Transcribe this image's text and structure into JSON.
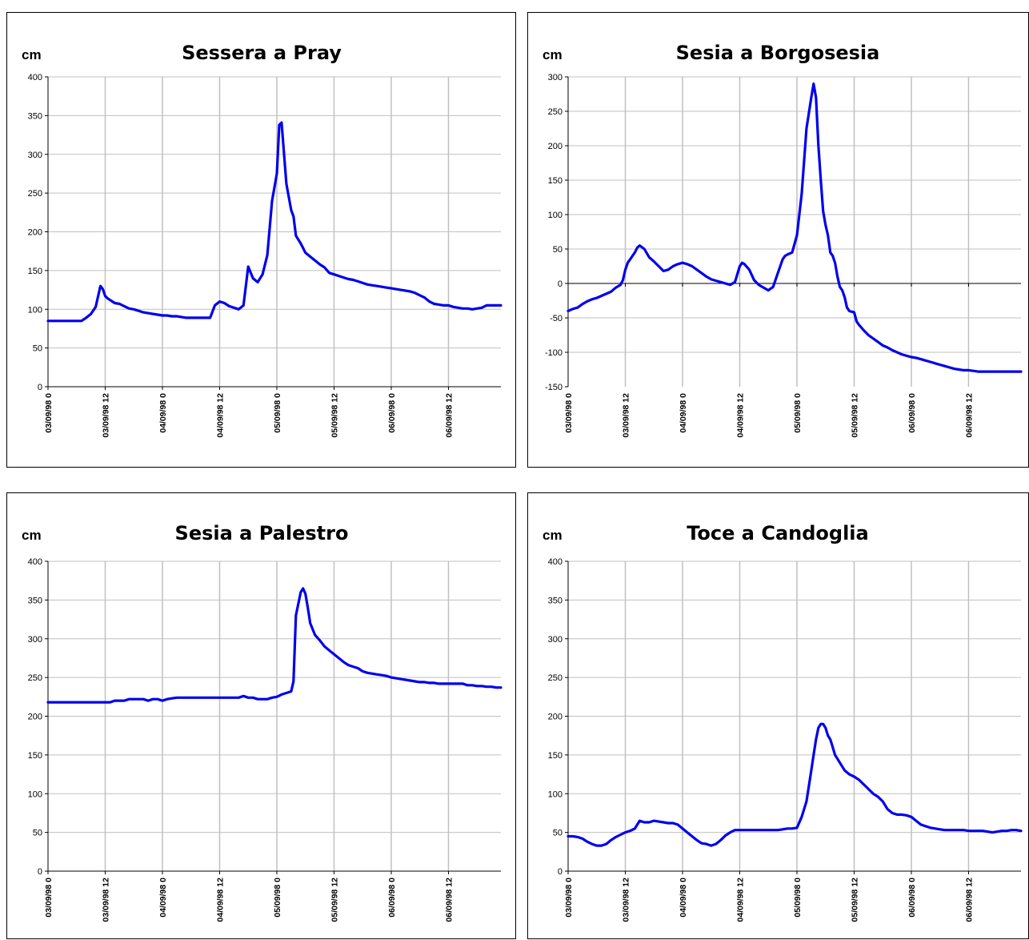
{
  "colors": {
    "series": "#0000ee",
    "grid": "#c0c0c0",
    "axis": "#000000"
  },
  "chart_data": [
    {
      "type": "line",
      "title": "Sessera a Pray",
      "ylabel": "cm",
      "ylim": [
        0,
        400
      ],
      "yticks": [
        0,
        50,
        100,
        150,
        200,
        250,
        300,
        350,
        400
      ],
      "xticks": [
        "03/09/98 0",
        "03/09/98 12",
        "04/09/98 0",
        "04/09/98 12",
        "05/09/98 0",
        "05/09/98 12",
        "06/09/98 0",
        "06/09/98 12"
      ],
      "xlim_hours": [
        0,
        95
      ],
      "grid": true,
      "x": [
        0,
        7,
        8,
        9,
        10,
        11,
        11.5,
        12,
        12.5,
        13,
        14,
        15,
        16,
        17,
        18,
        19,
        20,
        21,
        22,
        23,
        24,
        25,
        26,
        27,
        28,
        29,
        30,
        31,
        32,
        33,
        34,
        35,
        36,
        37,
        38,
        39,
        40,
        41,
        42,
        43,
        44,
        45,
        46,
        47,
        48,
        48.5,
        49,
        50,
        50.5,
        51,
        51.5,
        52,
        52.5,
        53,
        54,
        55,
        56,
        57,
        58,
        59,
        60,
        61,
        62,
        63,
        64,
        65,
        66,
        67,
        68,
        69,
        70,
        71,
        72,
        73,
        74,
        75,
        76,
        77,
        78,
        79,
        80,
        81,
        82,
        83,
        84,
        85,
        86,
        87,
        88,
        89,
        90,
        91,
        92,
        93,
        94,
        95
      ],
      "y": [
        85,
        85,
        89,
        94,
        103,
        130,
        126,
        117,
        114,
        112,
        108,
        107,
        104,
        101,
        100,
        98,
        96,
        95,
        94,
        93,
        92,
        92,
        91,
        91,
        90,
        89,
        89,
        89,
        89,
        89,
        89,
        105,
        110,
        108,
        104,
        102,
        100,
        105,
        155,
        140,
        135,
        145,
        170,
        240,
        275,
        338,
        341,
        262,
        245,
        228,
        220,
        195,
        190,
        185,
        173,
        168,
        163,
        158,
        154,
        147,
        145,
        143,
        141,
        139,
        138,
        136,
        134,
        132,
        131,
        130,
        129,
        128,
        127,
        126,
        125,
        124,
        123,
        121,
        118,
        115,
        110,
        107,
        106,
        105,
        105,
        103,
        102,
        101,
        101,
        100,
        101,
        102,
        105,
        105,
        105,
        105
      ]
    },
    {
      "type": "line",
      "title": "Sesia a Borgosesia",
      "ylabel": "cm",
      "ylim": [
        -150,
        300
      ],
      "yticks": [
        -150,
        -100,
        -50,
        0,
        50,
        100,
        150,
        200,
        250,
        300
      ],
      "xticks": [
        "03/09/98 0",
        "03/09/98 12",
        "04/09/98 0",
        "04/09/98 12",
        "05/09/98 0",
        "05/09/98 12",
        "06/09/98 0",
        "06/09/98 12"
      ],
      "xlim_hours": [
        0,
        95
      ],
      "grid": true,
      "x": [
        0,
        1,
        2,
        3,
        4,
        5,
        6,
        7,
        8,
        9,
        10,
        11,
        11.5,
        12,
        12.5,
        13,
        13.5,
        14,
        14.5,
        15,
        16,
        17,
        18,
        19,
        20,
        21,
        22,
        23,
        24,
        25,
        26,
        27,
        28,
        29,
        30,
        31,
        32,
        33,
        34,
        35,
        36,
        36.5,
        37,
        38,
        39,
        40,
        41,
        42,
        43,
        44,
        45,
        45.5,
        46,
        47,
        48,
        49,
        50,
        51,
        51.5,
        52,
        52.5,
        53,
        53.5,
        54,
        54.5,
        55,
        55.5,
        56,
        56.5,
        57,
        57.5,
        58,
        58.5,
        59,
        60,
        60.5,
        61,
        62,
        63,
        64,
        65,
        66,
        67,
        68,
        69,
        70,
        71,
        72,
        73,
        74,
        75,
        76,
        77,
        78,
        79,
        80,
        81,
        82,
        83,
        84,
        85,
        86,
        87,
        88,
        89,
        90,
        91,
        92,
        93,
        94,
        95
      ],
      "y": [
        -40,
        -37,
        -35,
        -30,
        -26,
        -23,
        -21,
        -18,
        -15,
        -12,
        -6,
        -2,
        5,
        20,
        30,
        35,
        40,
        45,
        52,
        55,
        50,
        38,
        32,
        25,
        18,
        20,
        25,
        28,
        30,
        28,
        25,
        20,
        15,
        10,
        6,
        4,
        2,
        0,
        -2,
        2,
        25,
        30,
        28,
        20,
        5,
        -2,
        -6,
        -10,
        -5,
        15,
        35,
        40,
        42,
        45,
        70,
        130,
        225,
        270,
        290,
        270,
        200,
        150,
        105,
        85,
        70,
        45,
        40,
        30,
        10,
        -5,
        -10,
        -20,
        -35,
        -40,
        -42,
        -55,
        -60,
        -68,
        -75,
        -80,
        -85,
        -90,
        -93,
        -97,
        -100,
        -103,
        -105,
        -107,
        -108,
        -110,
        -112,
        -114,
        -116,
        -118,
        -120,
        -122,
        -124,
        -125,
        -126,
        -126,
        -127,
        -128,
        -128,
        -128,
        -128,
        -128,
        -128,
        -128,
        -128,
        -128,
        -128
      ]
    },
    {
      "type": "line",
      "title": "Sesia a Palestro",
      "ylabel": "cm",
      "ylim": [
        0,
        400
      ],
      "yticks": [
        0,
        50,
        100,
        150,
        200,
        250,
        300,
        350,
        400
      ],
      "xticks": [
        "03/09/98 0",
        "03/09/98 12",
        "04/09/98 0",
        "04/09/98 12",
        "05/09/98 0",
        "05/09/98 12",
        "06/09/98 0",
        "06/09/98 12"
      ],
      "xlim_hours": [
        0,
        95
      ],
      "grid": true,
      "x": [
        0,
        4,
        8,
        12,
        13,
        14,
        15,
        16,
        17,
        18,
        19,
        20,
        21,
        22,
        23,
        24,
        25,
        26,
        27,
        28,
        29,
        30,
        31,
        32,
        33,
        34,
        35,
        36,
        37,
        38,
        39,
        40,
        41,
        42,
        43,
        44,
        45,
        46,
        47,
        48,
        49,
        50,
        51,
        51.5,
        52,
        52.5,
        53,
        53.5,
        54,
        54.5,
        55,
        56,
        57,
        58,
        59,
        60,
        61,
        62,
        63,
        64,
        65,
        66,
        67,
        68,
        69,
        70,
        71,
        72,
        73,
        74,
        75,
        76,
        77,
        78,
        79,
        80,
        81,
        82,
        83,
        84,
        85,
        86,
        87,
        88,
        89,
        90,
        91,
        92,
        93,
        94,
        95
      ],
      "y": [
        218,
        218,
        218,
        218,
        218,
        220,
        220,
        220,
        222,
        222,
        222,
        222,
        220,
        222,
        222,
        220,
        222,
        223,
        224,
        224,
        224,
        224,
        224,
        224,
        224,
        224,
        224,
        224,
        224,
        224,
        224,
        224,
        226,
        224,
        224,
        222,
        222,
        222,
        224,
        225,
        228,
        230,
        232,
        245,
        330,
        345,
        360,
        365,
        358,
        340,
        320,
        305,
        298,
        290,
        285,
        280,
        275,
        270,
        266,
        264,
        262,
        258,
        256,
        255,
        254,
        253,
        252,
        250,
        249,
        248,
        247,
        246,
        245,
        244,
        244,
        243,
        243,
        242,
        242,
        242,
        242,
        242,
        242,
        240,
        240,
        239,
        239,
        238,
        238,
        237,
        237
      ]
    },
    {
      "type": "line",
      "title": "Toce a Candoglia",
      "ylabel": "cm",
      "ylim": [
        0,
        400
      ],
      "yticks": [
        0,
        50,
        100,
        150,
        200,
        250,
        300,
        350,
        400
      ],
      "xticks": [
        "03/09/98 0",
        "03/09/98 12",
        "04/09/98 0",
        "04/09/98 12",
        "05/09/98 0",
        "05/09/98 12",
        "06/09/98 0",
        "06/09/98 12"
      ],
      "xlim_hours": [
        0,
        95
      ],
      "grid": true,
      "x": [
        0,
        1,
        2,
        3,
        4,
        5,
        6,
        7,
        8,
        9,
        10,
        11,
        12,
        13,
        14,
        15,
        16,
        17,
        18,
        19,
        20,
        21,
        22,
        23,
        24,
        25,
        26,
        27,
        28,
        29,
        30,
        31,
        32,
        33,
        34,
        35,
        36,
        37,
        38,
        39,
        40,
        41,
        42,
        43,
        44,
        45,
        46,
        47,
        48,
        49,
        50,
        50.5,
        51,
        51.5,
        52,
        52.5,
        53,
        53.5,
        54,
        54.5,
        55,
        55.5,
        56,
        56.5,
        57,
        58,
        59,
        60,
        61,
        62,
        63,
        64,
        65,
        66,
        67,
        68,
        69,
        70,
        71,
        72,
        73,
        74,
        75,
        76,
        77,
        78,
        79,
        80,
        81,
        82,
        83,
        84,
        85,
        86,
        87,
        88,
        89,
        90,
        91,
        92,
        93,
        94,
        95
      ],
      "y": [
        45,
        45,
        44,
        42,
        38,
        35,
        33,
        33,
        35,
        40,
        44,
        47,
        50,
        52,
        55,
        65,
        63,
        63,
        65,
        64,
        63,
        62,
        62,
        60,
        55,
        50,
        45,
        40,
        36,
        35,
        33,
        35,
        40,
        46,
        50,
        53,
        53,
        53,
        53,
        53,
        53,
        53,
        53,
        53,
        53,
        54,
        55,
        55,
        56,
        70,
        90,
        110,
        130,
        150,
        170,
        185,
        190,
        190,
        185,
        175,
        170,
        160,
        150,
        145,
        140,
        130,
        125,
        122,
        118,
        112,
        106,
        100,
        96,
        90,
        80,
        75,
        73,
        73,
        72,
        70,
        65,
        60,
        58,
        56,
        55,
        54,
        53,
        53,
        53,
        53,
        53,
        52,
        52,
        52,
        52,
        51,
        50,
        51,
        52,
        52,
        53,
        53,
        52
      ]
    }
  ]
}
